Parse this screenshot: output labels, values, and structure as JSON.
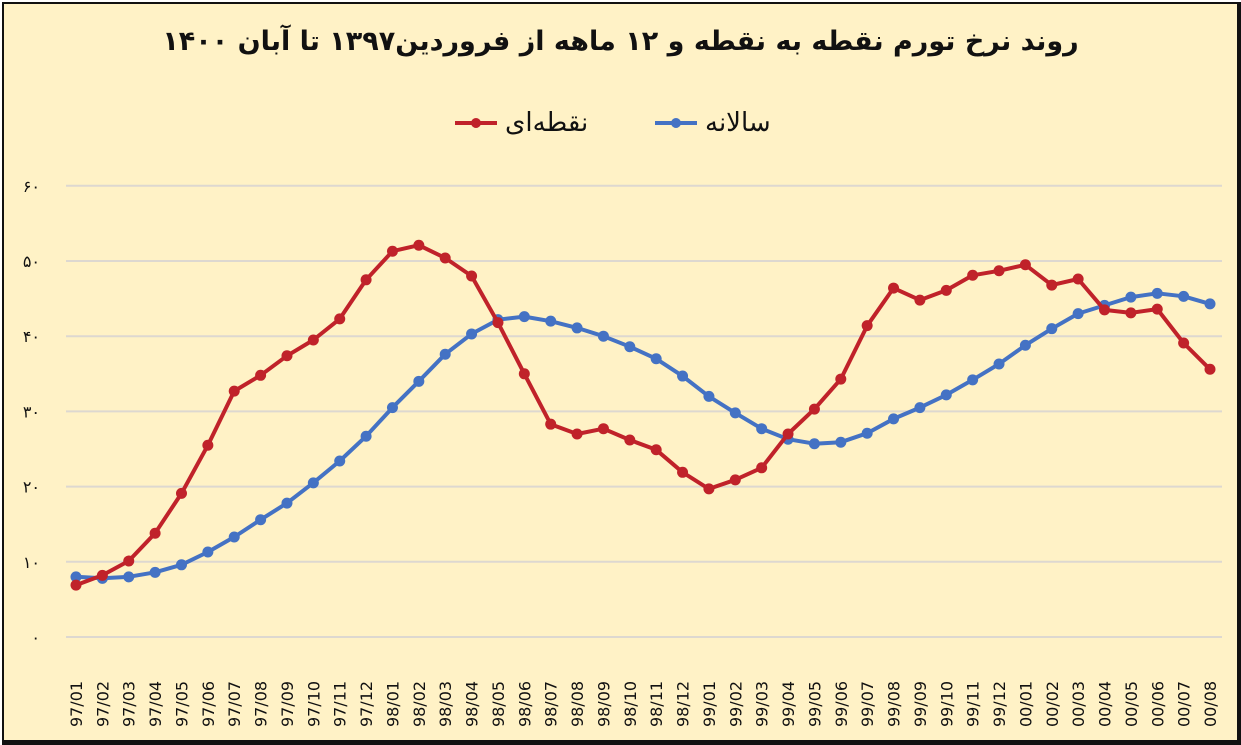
{
  "header": {
    "title": "روند نرخ تورم نقطه به نقطه و ۱۲ ماهه از فروردین۱۳۹۷ تا آبان ۱۴۰۰"
  },
  "legend": [
    {
      "label": "نقطه‌ای",
      "color": "#c0222a",
      "series": "point"
    },
    {
      "label": "سالانه",
      "color": "#4472c4",
      "series": "annual"
    }
  ],
  "colors": {
    "background": "#fff2c6",
    "grid": "#ddd8d0",
    "point_series": "#c0222a",
    "annual_series": "#4472c4"
  },
  "chart_data": {
    "type": "line",
    "title": "روند نرخ تورم نقطه به نقطه و ۱۲ ماهه از فروردین۱۳۹۷ تا آبان ۱۴۰۰",
    "xlabel": "",
    "ylabel": "",
    "ylim": [
      0,
      60
    ],
    "yticks": [
      0,
      10,
      20,
      30,
      40,
      50,
      60
    ],
    "ytick_labels": [
      "۰",
      "۱۰",
      "۲۰",
      "۳۰",
      "۴۰",
      "۵۰",
      "۶۰"
    ],
    "grid": true,
    "legend_position": "top",
    "categories": [
      "97/01",
      "97/02",
      "97/03",
      "97/04",
      "97/05",
      "97/06",
      "97/07",
      "97/08",
      "97/09",
      "97/10",
      "97/11",
      "97/12",
      "98/01",
      "98/02",
      "98/03",
      "98/04",
      "98/05",
      "98/06",
      "98/07",
      "98/08",
      "98/09",
      "98/10",
      "98/11",
      "98/12",
      "99/01",
      "99/02",
      "99/03",
      "99/04",
      "99/05",
      "99/06",
      "99/07",
      "99/08",
      "99/09",
      "99/10",
      "99/11",
      "99/12",
      "00/01",
      "00/02",
      "00/03",
      "00/04",
      "00/05",
      "00/06",
      "00/07",
      "00/08"
    ],
    "series": [
      {
        "name": "نقطه‌ای",
        "color": "#c0222a",
        "values": [
          6.9,
          8.2,
          10.1,
          13.8,
          19.1,
          25.5,
          32.7,
          34.8,
          37.4,
          39.5,
          42.3,
          47.5,
          51.3,
          52.1,
          50.4,
          48.0,
          41.8,
          35.0,
          28.3,
          27.0,
          27.7,
          26.2,
          24.9,
          21.9,
          19.7,
          20.9,
          22.5,
          27.0,
          30.3,
          34.3,
          41.4,
          46.4,
          44.8,
          46.1,
          48.1,
          48.7,
          49.5,
          46.8,
          47.6,
          43.5,
          43.1,
          43.6,
          39.1,
          35.6
        ]
      },
      {
        "name": "سالانه",
        "color": "#4472c4",
        "values": [
          8.0,
          7.8,
          8.0,
          8.6,
          9.6,
          11.3,
          13.3,
          15.6,
          17.8,
          20.5,
          23.4,
          26.7,
          30.5,
          34.0,
          37.6,
          40.3,
          42.2,
          42.6,
          42.0,
          41.1,
          40.0,
          38.6,
          37.0,
          34.7,
          32.0,
          29.8,
          27.7,
          26.3,
          25.7,
          25.9,
          27.1,
          29.0,
          30.5,
          32.2,
          34.2,
          36.3,
          38.8,
          41.0,
          43.0,
          44.1,
          45.2,
          45.7,
          45.3,
          44.3
        ]
      }
    ]
  }
}
